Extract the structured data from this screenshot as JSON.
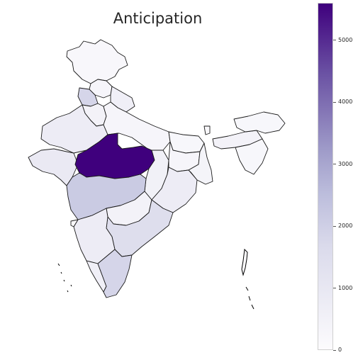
{
  "title": "Anticipation",
  "colorbar": {
    "ticks": [
      "0",
      "1000",
      "2000",
      "3000",
      "4000",
      "5000"
    ],
    "min": 0,
    "max": 5600,
    "colors": [
      "#fcfbfd",
      "#dadaeb",
      "#bcbddc",
      "#9e9ac8",
      "#6a51a3",
      "#3f007d"
    ]
  },
  "regions": [
    {
      "name": "Jammu and Kashmir",
      "value": 120
    },
    {
      "name": "Himachal Pradesh",
      "value": 200
    },
    {
      "name": "Punjab",
      "value": 1300
    },
    {
      "name": "Uttarakhand",
      "value": 400
    },
    {
      "name": "Haryana",
      "value": 300
    },
    {
      "name": "Rajasthan",
      "value": 500
    },
    {
      "name": "Uttar Pradesh",
      "value": 200
    },
    {
      "name": "Bihar",
      "value": 150
    },
    {
      "name": "Gujarat",
      "value": 600
    },
    {
      "name": "Madhya Pradesh",
      "value": 5600
    },
    {
      "name": "Chhattisgarh",
      "value": 350
    },
    {
      "name": "Jharkhand",
      "value": 200
    },
    {
      "name": "West Bengal",
      "value": 250
    },
    {
      "name": "Odisha",
      "value": 500
    },
    {
      "name": "Maharashtra",
      "value": 1700
    },
    {
      "name": "Telangana",
      "value": 300
    },
    {
      "name": "Andhra Pradesh",
      "value": 1000
    },
    {
      "name": "Karnataka",
      "value": 500
    },
    {
      "name": "Goa",
      "value": 100
    },
    {
      "name": "Kerala",
      "value": 400
    },
    {
      "name": "Tamil Nadu",
      "value": 1300
    },
    {
      "name": "Sikkim",
      "value": 100
    },
    {
      "name": "Assam",
      "value": 300
    },
    {
      "name": "Arunachal Pradesh",
      "value": 150
    },
    {
      "name": "Northeast States",
      "value": 150
    }
  ]
}
